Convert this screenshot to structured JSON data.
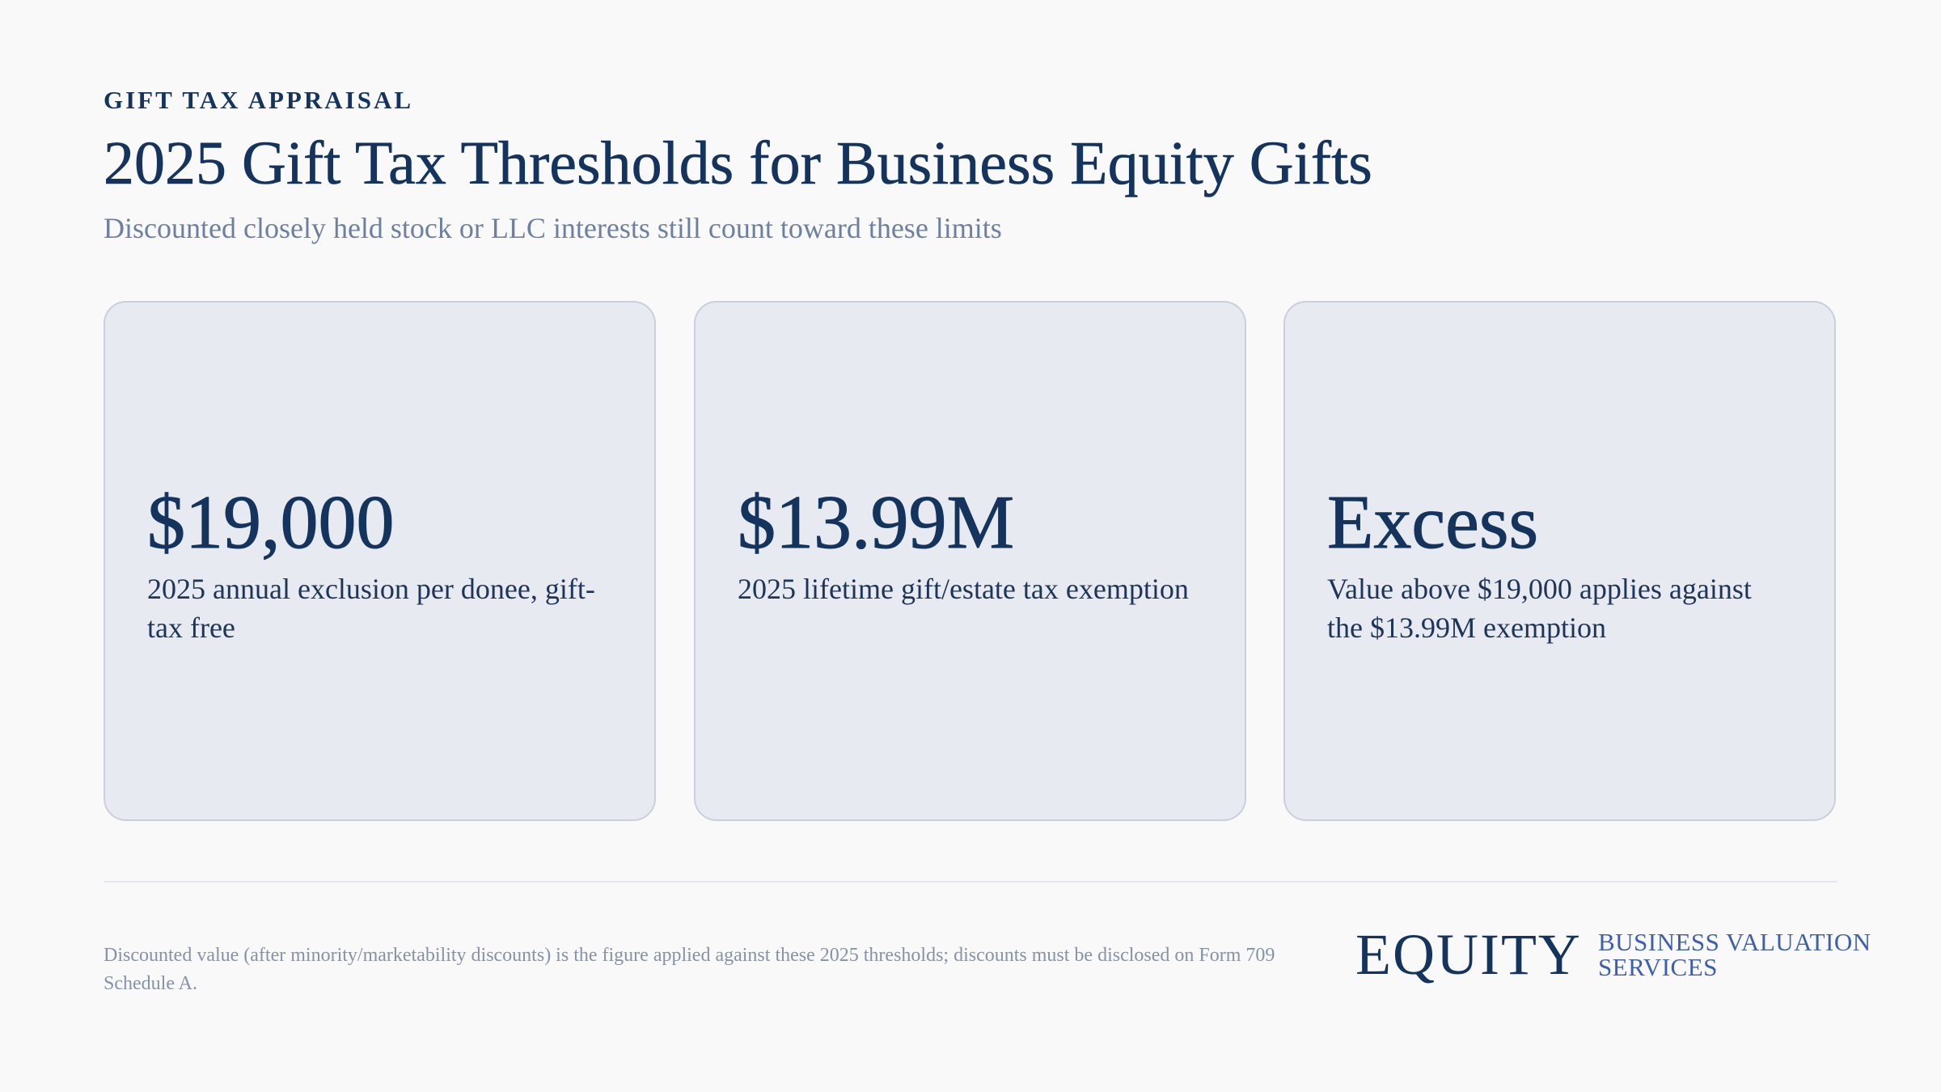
{
  "header": {
    "eyebrow": "GIFT TAX APPRAISAL",
    "title": "2025 Gift Tax Thresholds for Business Equity Gifts",
    "subtitle": "Discounted closely held stock or LLC interests still count toward these limits"
  },
  "cards": [
    {
      "value": "$19,000",
      "description": "2025 annual exclusion per donee, gift-tax free"
    },
    {
      "value": "$13.99M",
      "description": "2025 lifetime gift/estate tax exemption"
    },
    {
      "value": "Excess",
      "description": "Value above $19,000 applies against the $13.99M exemption"
    }
  ],
  "footer": {
    "note": "Discounted value (after minority/marketability discounts) is the figure applied against these 2025 thresholds; discounts must be disclosed on Form 709 Schedule A.",
    "logo": {
      "wordmark": "EQUITY",
      "tagline_line1": "BUSINESS VALUATION",
      "tagline_line2": "SERVICES"
    }
  },
  "colors": {
    "background": "#f9f9fa",
    "primary_navy": "#14345e",
    "muted_text": "#6d80a0",
    "card_fill": "#e7eaf0",
    "card_border": "#c9d0dc",
    "logo_accent": "#3e5fae"
  }
}
